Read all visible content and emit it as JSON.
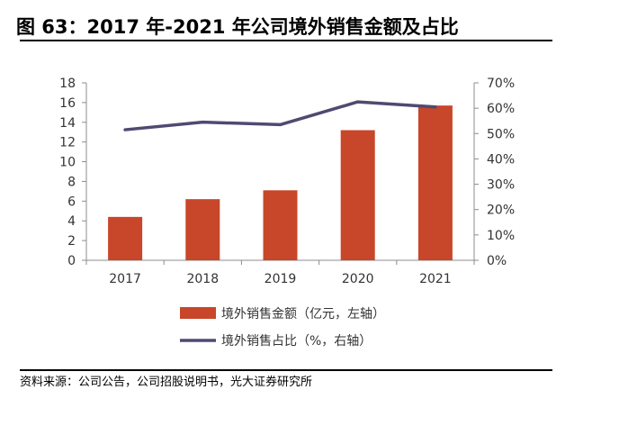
{
  "figure": {
    "title": "图 63：2017 年-2021 年公司境外销售金额及占比",
    "source": "资料来源：公司公告，公司招股说明书，光大证券研究所"
  },
  "colors": {
    "bar": "#C8462A",
    "line": "#4F4A72",
    "axis": "#8C8C8C"
  },
  "chart_data": {
    "type": "bar",
    "categories": [
      "2017",
      "2018",
      "2019",
      "2020",
      "2021"
    ],
    "series": [
      {
        "name": "境外销售金额（亿元，左轴）",
        "type": "bar",
        "axis": "left",
        "values": [
          4.4,
          6.2,
          7.1,
          13.2,
          15.7
        ]
      },
      {
        "name": "境外销售占比（%，右轴）",
        "type": "line",
        "axis": "right",
        "values": [
          51.5,
          54.5,
          53.5,
          62.5,
          60.5
        ]
      }
    ],
    "y_left": {
      "ylim": [
        0,
        18
      ],
      "ticks": [
        "0",
        "2",
        "4",
        "6",
        "8",
        "10",
        "12",
        "14",
        "16",
        "18"
      ]
    },
    "y_right": {
      "ylim": [
        0,
        70
      ],
      "ticks": [
        "0%",
        "10%",
        "20%",
        "30%",
        "40%",
        "50%",
        "60%",
        "70%"
      ]
    },
    "grid": false,
    "legend_position": "bottom"
  }
}
